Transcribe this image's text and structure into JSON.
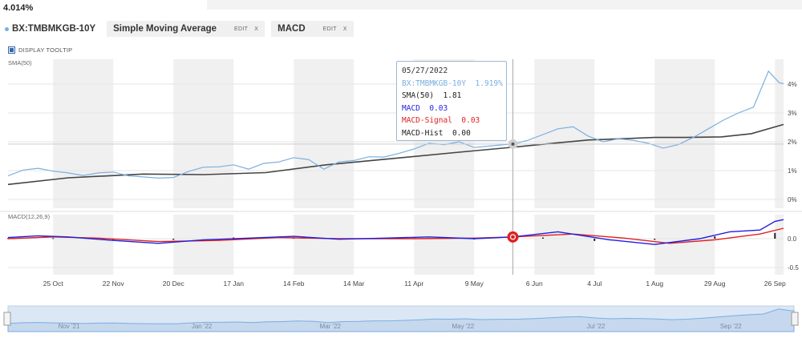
{
  "header": {
    "last_value": "4.014%"
  },
  "legend": {
    "symbol": "BX:TMBMKGB-10Y",
    "studies": [
      {
        "name": "Simple Moving Average",
        "edit": "EDIT",
        "close": "X"
      },
      {
        "name": "MACD",
        "edit": "EDIT",
        "close": "X"
      }
    ]
  },
  "tooltip_toggle": {
    "label": "DISPLAY TOOLTIP",
    "checked": true
  },
  "panes": {
    "price_label": "SMA(50)",
    "macd_label": "MACD(12,26,9)"
  },
  "tooltip": {
    "date": "05/27/2022",
    "rows": [
      {
        "label": "BX:TMBMKGB-10Y",
        "value": "1.919%",
        "color": "#7aaee0"
      },
      {
        "label": "SMA(50)",
        "value": "1.81",
        "color": "#222222"
      },
      {
        "label": "MACD",
        "value": "0.03",
        "color": "#1f1fe0"
      },
      {
        "label": "MACD-Signal",
        "value": "0.03",
        "color": "#e02020"
      },
      {
        "label": "MACD-Hist",
        "value": "0.00",
        "color": "#222222"
      }
    ]
  },
  "colors": {
    "price": "#7aaee0",
    "sma": "#444444",
    "macd": "#1f1fe0",
    "signal": "#e02020",
    "hist": "#222222",
    "band": "#f0f0f0",
    "navigator_fill": "#dbe7f5"
  },
  "chart_data": [
    {
      "type": "line",
      "y_ticks": [
        "4%",
        "3%",
        "2%",
        "1%",
        "0%"
      ],
      "ylim": [
        0,
        4.5
      ],
      "x_tick_labels": [
        "25 Oct",
        "22 Nov",
        "20 Dec",
        "17 Jan",
        "14 Feb",
        "14 Mar",
        "11 Apr",
        "9 May",
        "6 Jun",
        "4 Jul",
        "1 Aug",
        "29 Aug",
        "26 Sep"
      ],
      "x_tick_dates": [
        "2021-10-25",
        "2021-11-22",
        "2021-12-20",
        "2022-01-17",
        "2022-02-14",
        "2022-03-14",
        "2022-04-11",
        "2022-05-09",
        "2022-06-06",
        "2022-07-04",
        "2022-08-01",
        "2022-08-29",
        "2022-09-26"
      ],
      "x_range": [
        "2021-10-04",
        "2022-09-30"
      ],
      "series": [
        {
          "name": "BX:TMBMKGB-10Y",
          "points": [
            [
              "2021-10-04",
              0.82
            ],
            [
              "2021-10-11",
              1.02
            ],
            [
              "2021-10-18",
              1.08
            ],
            [
              "2021-10-25",
              0.98
            ],
            [
              "2021-11-01",
              0.92
            ],
            [
              "2021-11-08",
              0.83
            ],
            [
              "2021-11-15",
              0.92
            ],
            [
              "2021-11-22",
              0.95
            ],
            [
              "2021-11-29",
              0.82
            ],
            [
              "2021-12-06",
              0.78
            ],
            [
              "2021-12-13",
              0.74
            ],
            [
              "2021-12-20",
              0.76
            ],
            [
              "2021-12-27",
              0.97
            ],
            [
              "2022-01-03",
              1.12
            ],
            [
              "2022-01-10",
              1.13
            ],
            [
              "2022-01-17",
              1.2
            ],
            [
              "2022-01-24",
              1.05
            ],
            [
              "2022-01-31",
              1.25
            ],
            [
              "2022-02-07",
              1.3
            ],
            [
              "2022-02-14",
              1.45
            ],
            [
              "2022-02-21",
              1.38
            ],
            [
              "2022-02-28",
              1.05
            ],
            [
              "2022-03-07",
              1.3
            ],
            [
              "2022-03-14",
              1.35
            ],
            [
              "2022-03-21",
              1.48
            ],
            [
              "2022-03-28",
              1.47
            ],
            [
              "2022-04-04",
              1.6
            ],
            [
              "2022-04-11",
              1.75
            ],
            [
              "2022-04-18",
              1.95
            ],
            [
              "2022-04-25",
              1.9
            ],
            [
              "2022-05-02",
              2.0
            ],
            [
              "2022-05-09",
              1.8
            ],
            [
              "2022-05-16",
              1.85
            ],
            [
              "2022-05-23",
              1.9
            ],
            [
              "2022-05-27",
              1.919
            ],
            [
              "2022-06-03",
              2.05
            ],
            [
              "2022-06-10",
              2.25
            ],
            [
              "2022-06-17",
              2.45
            ],
            [
              "2022-06-24",
              2.52
            ],
            [
              "2022-07-01",
              2.2
            ],
            [
              "2022-07-08",
              2.0
            ],
            [
              "2022-07-15",
              2.1
            ],
            [
              "2022-07-22",
              2.05
            ],
            [
              "2022-07-29",
              1.95
            ],
            [
              "2022-08-05",
              1.78
            ],
            [
              "2022-08-12",
              1.9
            ],
            [
              "2022-08-19",
              2.15
            ],
            [
              "2022-08-26",
              2.45
            ],
            [
              "2022-09-02",
              2.75
            ],
            [
              "2022-09-09",
              3.0
            ],
            [
              "2022-09-16",
              3.2
            ],
            [
              "2022-09-23",
              4.45
            ],
            [
              "2022-09-28",
              4.05
            ],
            [
              "2022-09-30",
              4.014
            ]
          ]
        },
        {
          "name": "SMA(50)",
          "points": [
            [
              "2021-10-04",
              0.52
            ],
            [
              "2021-11-01",
              0.75
            ],
            [
              "2021-12-06",
              0.88
            ],
            [
              "2022-01-03",
              0.86
            ],
            [
              "2022-02-01",
              0.93
            ],
            [
              "2022-03-01",
              1.2
            ],
            [
              "2022-04-01",
              1.42
            ],
            [
              "2022-05-02",
              1.64
            ],
            [
              "2022-05-27",
              1.81
            ],
            [
              "2022-06-15",
              1.95
            ],
            [
              "2022-07-01",
              2.06
            ],
            [
              "2022-07-15",
              2.1
            ],
            [
              "2022-08-01",
              2.15
            ],
            [
              "2022-08-15",
              2.15
            ],
            [
              "2022-09-01",
              2.17
            ],
            [
              "2022-09-15",
              2.28
            ],
            [
              "2022-09-30",
              2.6
            ]
          ]
        }
      ]
    },
    {
      "type": "line",
      "y_ticks": [
        "0.0",
        "-0.5"
      ],
      "ylim": [
        -0.65,
        0.4
      ],
      "series": [
        {
          "name": "MACD",
          "points": [
            [
              "2021-10-04",
              0.02
            ],
            [
              "2021-10-18",
              0.05
            ],
            [
              "2021-11-01",
              0.03
            ],
            [
              "2021-11-22",
              -0.03
            ],
            [
              "2021-12-13",
              -0.08
            ],
            [
              "2022-01-03",
              -0.02
            ],
            [
              "2022-01-24",
              0.01
            ],
            [
              "2022-02-14",
              0.04
            ],
            [
              "2022-03-07",
              -0.01
            ],
            [
              "2022-03-28",
              0.01
            ],
            [
              "2022-04-18",
              0.03
            ],
            [
              "2022-05-09",
              0.0
            ],
            [
              "2022-05-27",
              0.03
            ],
            [
              "2022-06-17",
              0.12
            ],
            [
              "2022-07-11",
              -0.02
            ],
            [
              "2022-08-01",
              -0.1
            ],
            [
              "2022-08-22",
              0.0
            ],
            [
              "2022-09-05",
              0.12
            ],
            [
              "2022-09-19",
              0.15
            ],
            [
              "2022-09-26",
              0.3
            ],
            [
              "2022-09-30",
              0.33
            ]
          ]
        },
        {
          "name": "MACD-Signal",
          "points": [
            [
              "2021-10-04",
              0.0
            ],
            [
              "2021-10-25",
              0.03
            ],
            [
              "2021-11-15",
              0.01
            ],
            [
              "2021-12-13",
              -0.05
            ],
            [
              "2022-01-10",
              -0.03
            ],
            [
              "2022-02-07",
              0.02
            ],
            [
              "2022-03-07",
              0.0
            ],
            [
              "2022-04-11",
              0.0
            ],
            [
              "2022-05-09",
              0.01
            ],
            [
              "2022-05-27",
              0.03
            ],
            [
              "2022-06-24",
              0.08
            ],
            [
              "2022-07-18",
              0.01
            ],
            [
              "2022-08-08",
              -0.08
            ],
            [
              "2022-08-29",
              -0.02
            ],
            [
              "2022-09-19",
              0.08
            ],
            [
              "2022-09-30",
              0.18
            ]
          ]
        },
        {
          "name": "MACD-Hist",
          "points": [
            [
              "2021-10-04",
              0.01
            ],
            [
              "2021-10-25",
              0.01
            ],
            [
              "2021-11-22",
              -0.02
            ],
            [
              "2021-12-20",
              -0.02
            ],
            [
              "2022-01-17",
              0.02
            ],
            [
              "2022-02-14",
              0.02
            ],
            [
              "2022-03-14",
              -0.01
            ],
            [
              "2022-04-11",
              0.01
            ],
            [
              "2022-05-09",
              -0.01
            ],
            [
              "2022-05-27",
              0.0
            ],
            [
              "2022-06-10",
              0.02
            ],
            [
              "2022-07-04",
              -0.04
            ],
            [
              "2022-08-01",
              -0.02
            ],
            [
              "2022-08-29",
              0.04
            ],
            [
              "2022-09-26",
              0.1
            ]
          ]
        }
      ]
    }
  ],
  "navigator": {
    "labels": [
      "Nov '21",
      "Jan '22",
      "Mar '22",
      "May '22",
      "Jul '22",
      "Sep '22"
    ],
    "label_dates": [
      "2021-11-01",
      "2022-01-01",
      "2022-03-01",
      "2022-05-01",
      "2022-07-01",
      "2022-09-01"
    ]
  }
}
